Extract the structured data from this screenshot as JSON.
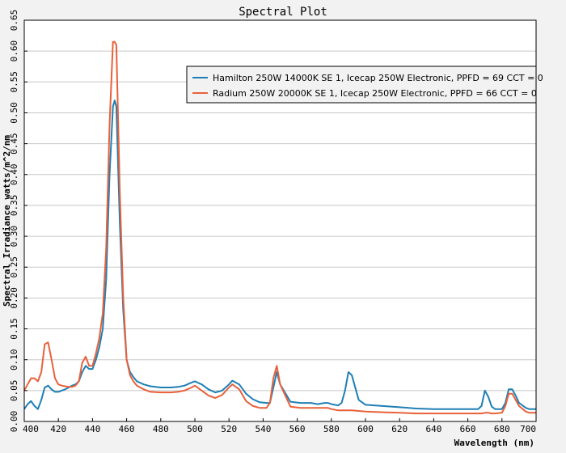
{
  "chart_data": {
    "type": "line",
    "title": "Spectral Plot",
    "xlabel": "Wavelength (nm)",
    "ylabel": "Spectral Irradiance watts/m^2/nm",
    "xlim": [
      400,
      700
    ],
    "ylim": [
      0,
      0.65
    ],
    "x_ticks": [
      400,
      420,
      440,
      460,
      480,
      500,
      520,
      540,
      560,
      580,
      600,
      620,
      640,
      660,
      680,
      700
    ],
    "y_ticks": [
      0.0,
      0.05,
      0.1,
      0.15,
      0.2,
      0.25,
      0.3,
      0.35,
      0.4,
      0.45,
      0.5,
      0.55,
      0.6,
      0.65
    ],
    "x_tick_labels": [
      "400",
      "420",
      "440",
      "460",
      "480",
      "500",
      "520",
      "540",
      "560",
      "580",
      "600",
      "620",
      "640",
      "660",
      "680",
      "700"
    ],
    "y_tick_labels": [
      "0.00",
      "0.05",
      "0.10",
      "0.15",
      "0.20",
      "0.25",
      "0.30",
      "0.35",
      "0.40",
      "0.45",
      "0.50",
      "0.55",
      "0.60",
      "0.65"
    ],
    "grid": "horizontal",
    "legend_position": "top-right",
    "colors": {
      "background": "#f2f2f2",
      "plot_background": "#ffffff",
      "grid": "#c8c8c8"
    },
    "series": [
      {
        "name": "Hamilton 250W 14000K SE 1, Icecap 250W Electronic, PPFD = 69  CCT = 0",
        "color": "#1f7fb4",
        "x": [
          400,
          402,
          404,
          406,
          408,
          410,
          412,
          414,
          416,
          418,
          420,
          422,
          424,
          426,
          428,
          430,
          432,
          434,
          436,
          438,
          440,
          442,
          444,
          446,
          448,
          450,
          452,
          453,
          454,
          456,
          458,
          460,
          462,
          464,
          466,
          470,
          474,
          480,
          486,
          490,
          494,
          498,
          500,
          504,
          508,
          512,
          516,
          520,
          522,
          526,
          530,
          534,
          538,
          542,
          544,
          546,
          548,
          550,
          556,
          562,
          568,
          572,
          576,
          578,
          580,
          584,
          586,
          588,
          590,
          592,
          596,
          600,
          610,
          620,
          630,
          640,
          650,
          660,
          666,
          668,
          670,
          672,
          674,
          676,
          680,
          682,
          684,
          686,
          688,
          690,
          694,
          696,
          700
        ],
        "y": [
          0.02,
          0.028,
          0.033,
          0.025,
          0.02,
          0.035,
          0.055,
          0.058,
          0.052,
          0.048,
          0.048,
          0.05,
          0.052,
          0.055,
          0.058,
          0.06,
          0.065,
          0.08,
          0.09,
          0.085,
          0.085,
          0.1,
          0.12,
          0.15,
          0.23,
          0.4,
          0.51,
          0.52,
          0.51,
          0.32,
          0.18,
          0.1,
          0.08,
          0.072,
          0.065,
          0.06,
          0.057,
          0.055,
          0.055,
          0.056,
          0.058,
          0.063,
          0.065,
          0.06,
          0.052,
          0.047,
          0.05,
          0.06,
          0.066,
          0.06,
          0.045,
          0.036,
          0.031,
          0.03,
          0.03,
          0.055,
          0.08,
          0.06,
          0.032,
          0.03,
          0.03,
          0.028,
          0.03,
          0.03,
          0.028,
          0.026,
          0.03,
          0.05,
          0.08,
          0.075,
          0.035,
          0.027,
          0.025,
          0.023,
          0.021,
          0.02,
          0.02,
          0.02,
          0.02,
          0.025,
          0.05,
          0.04,
          0.024,
          0.02,
          0.02,
          0.03,
          0.052,
          0.052,
          0.042,
          0.03,
          0.022,
          0.02,
          0.02
        ]
      },
      {
        "name": "Radium 250W 20000K SE 1, Icecap 250W Electronic, PPFD = 66  CCT = 0",
        "color": "#e8613a",
        "x": [
          400,
          402,
          404,
          406,
          408,
          410,
          412,
          414,
          416,
          418,
          420,
          422,
          424,
          426,
          428,
          430,
          432,
          434,
          436,
          438,
          440,
          442,
          444,
          446,
          448,
          450,
          452,
          453,
          454,
          456,
          458,
          460,
          462,
          464,
          466,
          470,
          474,
          480,
          486,
          490,
          494,
          498,
          500,
          504,
          508,
          512,
          516,
          520,
          522,
          526,
          530,
          534,
          538,
          542,
          544,
          546,
          548,
          550,
          556,
          562,
          568,
          572,
          576,
          578,
          580,
          584,
          586,
          588,
          590,
          592,
          596,
          600,
          610,
          620,
          630,
          640,
          650,
          660,
          666,
          668,
          670,
          672,
          674,
          676,
          680,
          682,
          684,
          686,
          688,
          690,
          694,
          696,
          700
        ],
        "y": [
          0.05,
          0.06,
          0.07,
          0.07,
          0.065,
          0.08,
          0.125,
          0.128,
          0.1,
          0.07,
          0.06,
          0.058,
          0.057,
          0.056,
          0.056,
          0.058,
          0.065,
          0.095,
          0.105,
          0.09,
          0.09,
          0.11,
          0.135,
          0.175,
          0.28,
          0.48,
          0.615,
          0.615,
          0.61,
          0.37,
          0.2,
          0.1,
          0.075,
          0.065,
          0.058,
          0.052,
          0.048,
          0.047,
          0.047,
          0.048,
          0.05,
          0.055,
          0.058,
          0.05,
          0.042,
          0.038,
          0.043,
          0.055,
          0.06,
          0.052,
          0.033,
          0.025,
          0.022,
          0.022,
          0.03,
          0.07,
          0.09,
          0.06,
          0.024,
          0.022,
          0.022,
          0.022,
          0.022,
          0.022,
          0.02,
          0.018,
          0.018,
          0.018,
          0.018,
          0.018,
          0.017,
          0.016,
          0.015,
          0.014,
          0.013,
          0.013,
          0.013,
          0.013,
          0.013,
          0.013,
          0.014,
          0.014,
          0.013,
          0.013,
          0.014,
          0.025,
          0.045,
          0.045,
          0.035,
          0.025,
          0.016,
          0.014,
          0.014
        ]
      }
    ]
  }
}
